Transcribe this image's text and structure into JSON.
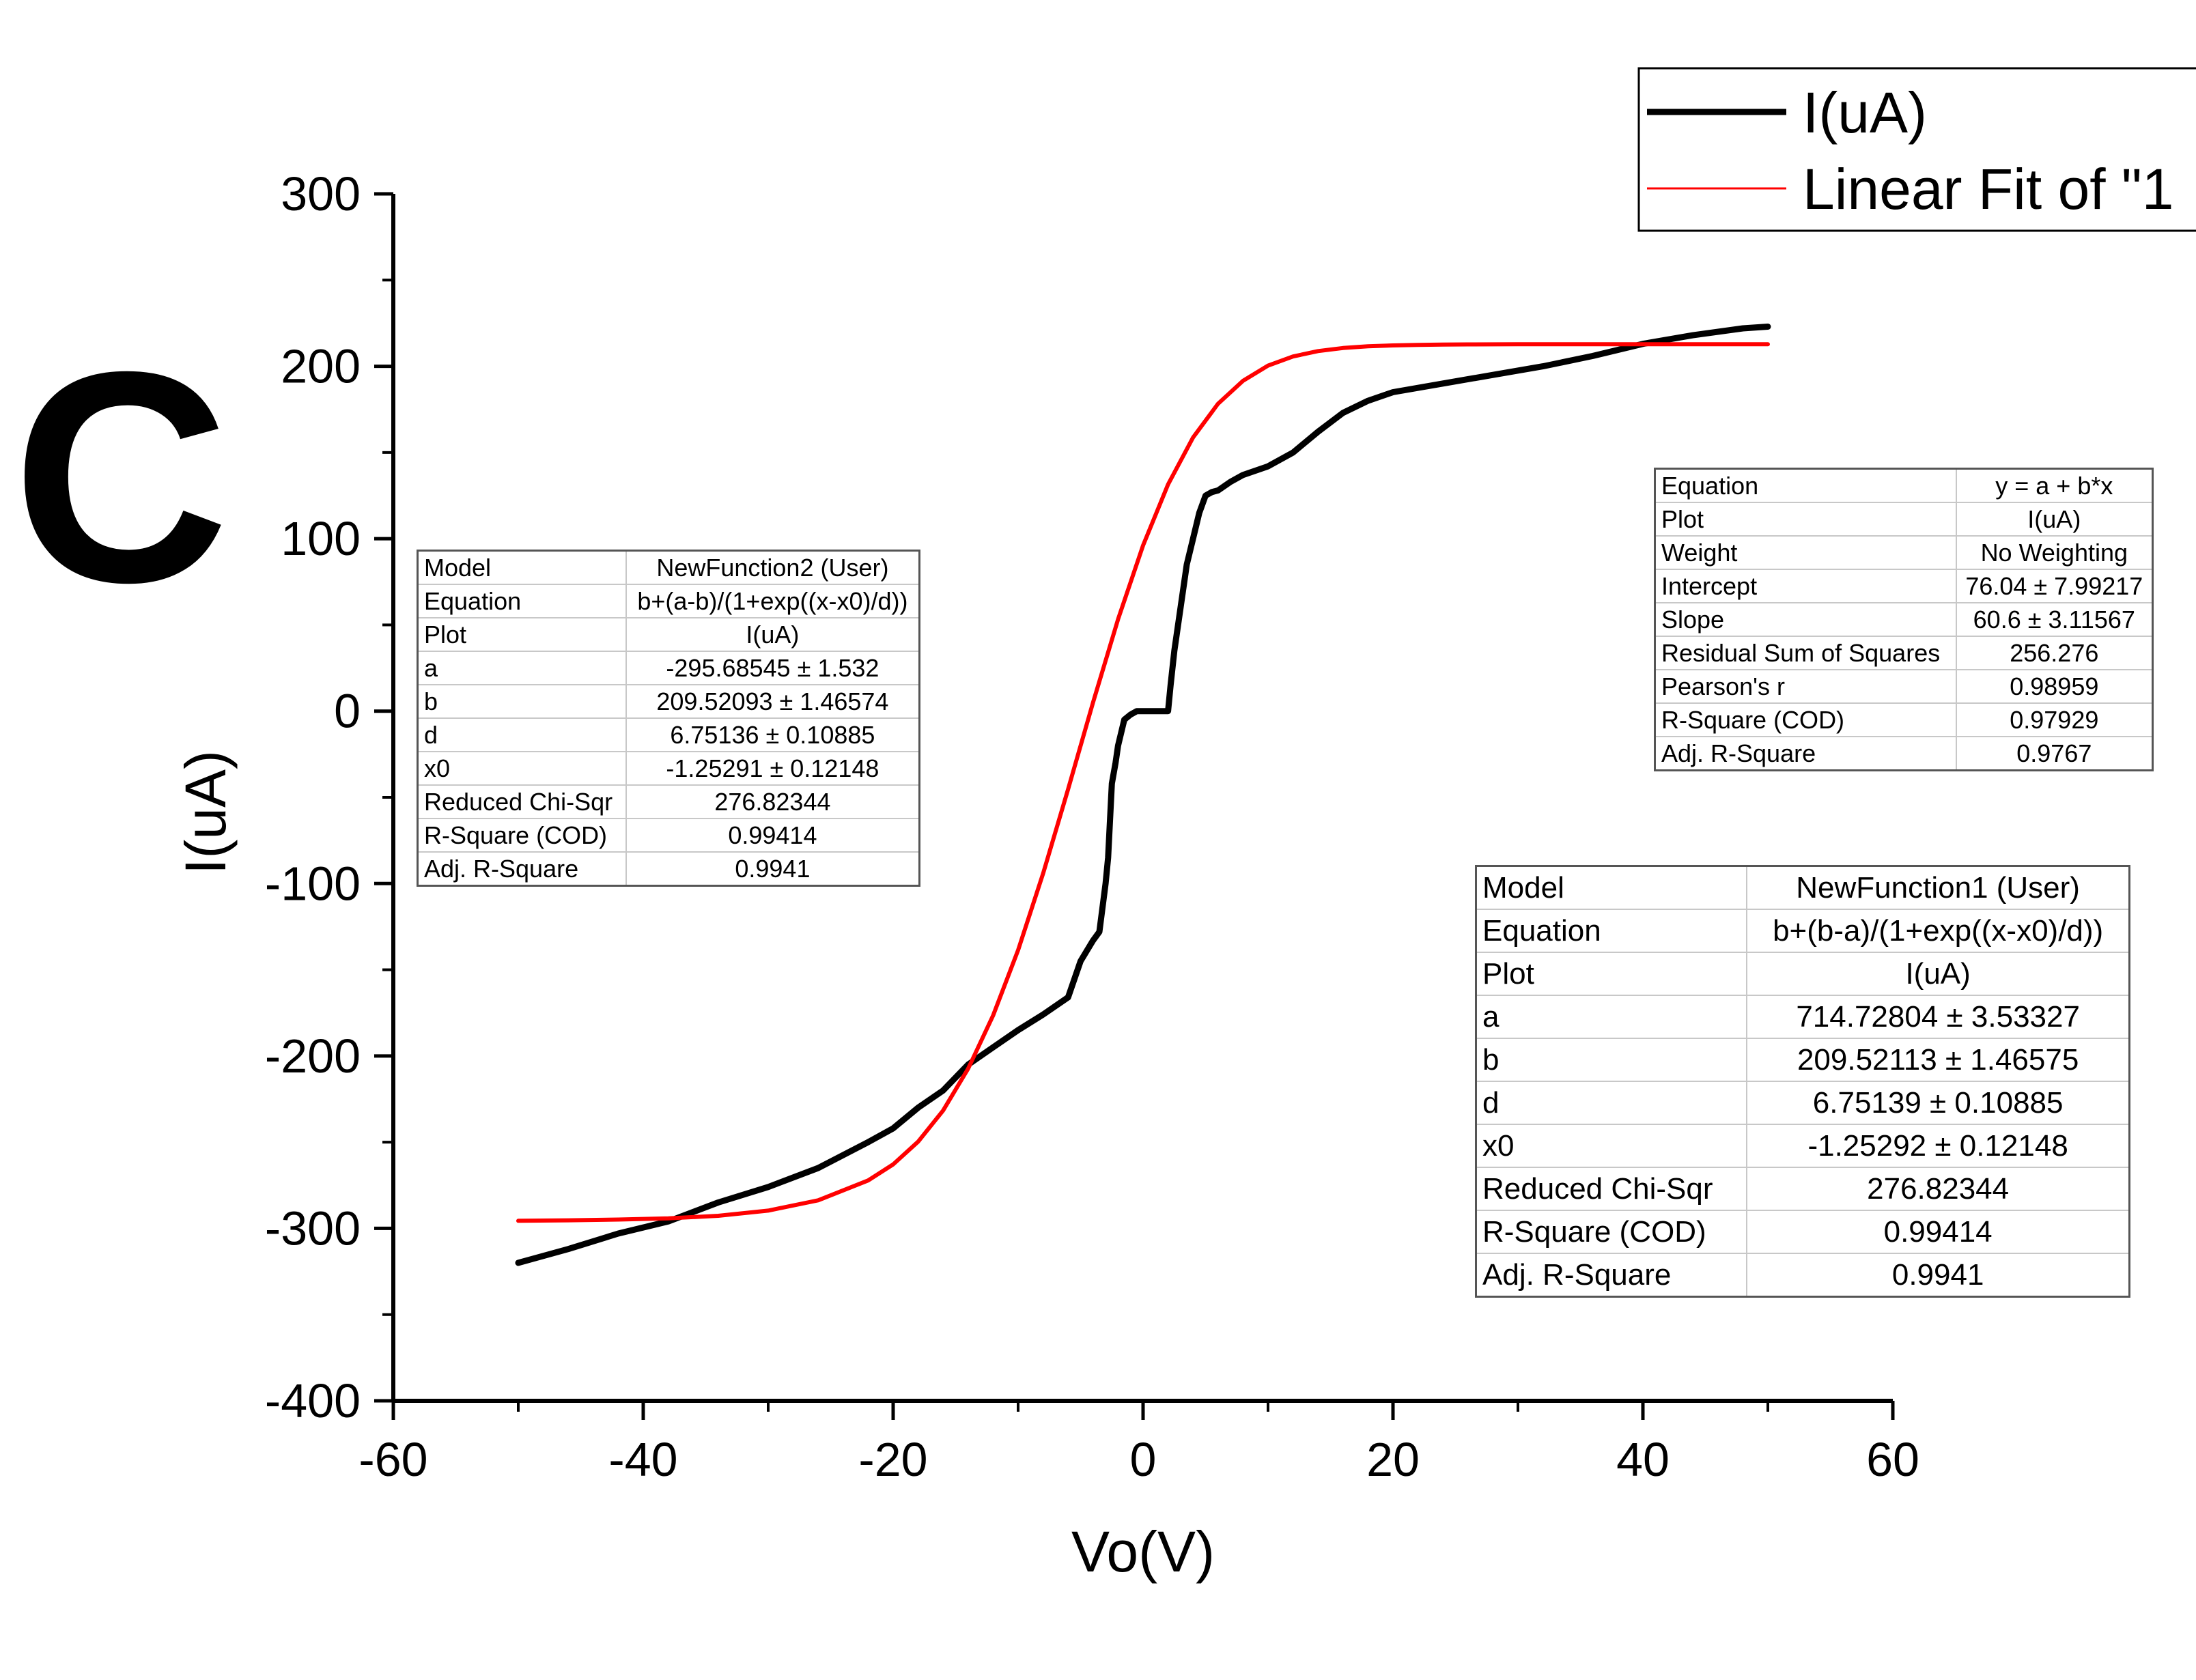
{
  "panel_label": "C",
  "chart_data": {
    "type": "line",
    "xlabel": "Vo(V)",
    "ylabel": "I(uA)",
    "xlim": [
      -60,
      60
    ],
    "ylim": [
      -400,
      300
    ],
    "xticks": [
      -60,
      -40,
      -20,
      0,
      20,
      40,
      60
    ],
    "yticks": [
      300,
      200,
      100,
      0,
      -100,
      -200,
      -300,
      -400
    ],
    "grid": false,
    "legend_position": "top-right",
    "series": [
      {
        "name": "I(uA)",
        "color": "#000000",
        "x": [
          -50,
          -46,
          -42,
          -38,
          -34,
          -30,
          -26,
          -22,
          -20,
          -18,
          -16,
          -14,
          -12,
          -10,
          -8,
          -6,
          -5,
          -4,
          -3.5,
          -3,
          -2.8,
          -2.5,
          -2.2,
          -2,
          -1.5,
          -1,
          -0.5,
          0,
          1,
          2,
          2.2,
          2.5,
          3,
          3.5,
          4,
          4.5,
          5,
          5.5,
          6,
          7,
          8,
          10,
          12,
          14,
          16,
          18,
          20,
          24,
          28,
          32,
          36,
          40,
          44,
          48,
          50
        ],
        "y": [
          -320,
          -312,
          -303,
          -296,
          -285,
          -276,
          -265,
          -250,
          -242,
          -230,
          -220,
          -205,
          -195,
          -185,
          -176,
          -166,
          -145,
          -133,
          -128,
          -100,
          -85,
          -42,
          -30,
          -20,
          -5,
          -2,
          0,
          0,
          0,
          0,
          15,
          35,
          60,
          85,
          100,
          115,
          125,
          127,
          128,
          133,
          137,
          142,
          150,
          162,
          173,
          180,
          185,
          190,
          195,
          200,
          206,
          213,
          218,
          222,
          223
        ]
      },
      {
        "name": "Linear Fit of \"1",
        "color": "#ff0000",
        "x": [
          -50,
          -46,
          -42,
          -38,
          -34,
          -30,
          -26,
          -22,
          -20,
          -18,
          -16,
          -14,
          -12,
          -10,
          -8,
          -6,
          -4,
          -2,
          0,
          2,
          4,
          6,
          8,
          10,
          12,
          14,
          16,
          18,
          20,
          22,
          24,
          26,
          30,
          34,
          38,
          42,
          46,
          50
        ],
        "y": [
          -295.6,
          -295.3,
          -294.9,
          -294.2,
          -292.7,
          -289.7,
          -283.7,
          -272.2,
          -262.9,
          -249.7,
          -231.6,
          -207.4,
          -176.5,
          -138.6,
          -94.2,
          -45.3,
          5.1,
          53.3,
          96.1,
          131.5,
          158.7,
          178.3,
          191.6,
          200.4,
          205.7,
          208.8,
          210.6,
          211.6,
          212.1,
          212.4,
          212.6,
          212.7,
          212.8,
          212.8,
          212.8,
          212.8,
          212.8,
          212.8
        ]
      }
    ]
  },
  "fit_table_left": {
    "rows": [
      {
        "key": "Model",
        "value": "NewFunction2 (User)"
      },
      {
        "key": "Equation",
        "value": "b+(a-b)/(1+exp((x-x0)/d))"
      },
      {
        "key": "Plot",
        "value": "I(uA)"
      },
      {
        "key": "a",
        "value": "-295.68545 ± 1.532"
      },
      {
        "key": "b",
        "value": "209.52093 ± 1.46574"
      },
      {
        "key": "d",
        "value": "6.75136 ± 0.10885"
      },
      {
        "key": "x0",
        "value": "-1.25291 ± 0.12148"
      },
      {
        "key": "Reduced Chi-Sqr",
        "value": "276.82344"
      },
      {
        "key": "R-Square (COD)",
        "value": "0.99414"
      },
      {
        "key": "Adj. R-Square",
        "value": "0.9941"
      }
    ]
  },
  "fit_table_right": {
    "rows": [
      {
        "key": "Equation",
        "value": "y = a + b*x"
      },
      {
        "key": "Plot",
        "value": "I(uA)"
      },
      {
        "key": "Weight",
        "value": "No Weighting"
      },
      {
        "key": "Intercept",
        "value": "76.04 ± 7.99217"
      },
      {
        "key": "Slope",
        "value": "60.6 ± 3.11567"
      },
      {
        "key": "Residual Sum of Squares",
        "value": "256.276"
      },
      {
        "key": "Pearson's r",
        "value": "0.98959"
      },
      {
        "key": "R-Square (COD)",
        "value": "0.97929"
      },
      {
        "key": "Adj. R-Square",
        "value": "0.9767"
      }
    ]
  },
  "fit_table_bottom": {
    "rows": [
      {
        "key": "Model",
        "value": "NewFunction1 (User)"
      },
      {
        "key": "Equation",
        "value": "b+(b-a)/(1+exp((x-x0)/d))"
      },
      {
        "key": "Plot",
        "value": "I(uA)"
      },
      {
        "key": "a",
        "value": "714.72804 ± 3.53327"
      },
      {
        "key": "b",
        "value": "209.52113 ± 1.46575"
      },
      {
        "key": "d",
        "value": "6.75139 ± 0.10885"
      },
      {
        "key": "x0",
        "value": "-1.25292 ± 0.12148"
      },
      {
        "key": "Reduced Chi-Sqr",
        "value": "276.82344"
      },
      {
        "key": "R-Square (COD)",
        "value": "0.99414"
      },
      {
        "key": "Adj. R-Square",
        "value": "0.9941"
      }
    ]
  }
}
